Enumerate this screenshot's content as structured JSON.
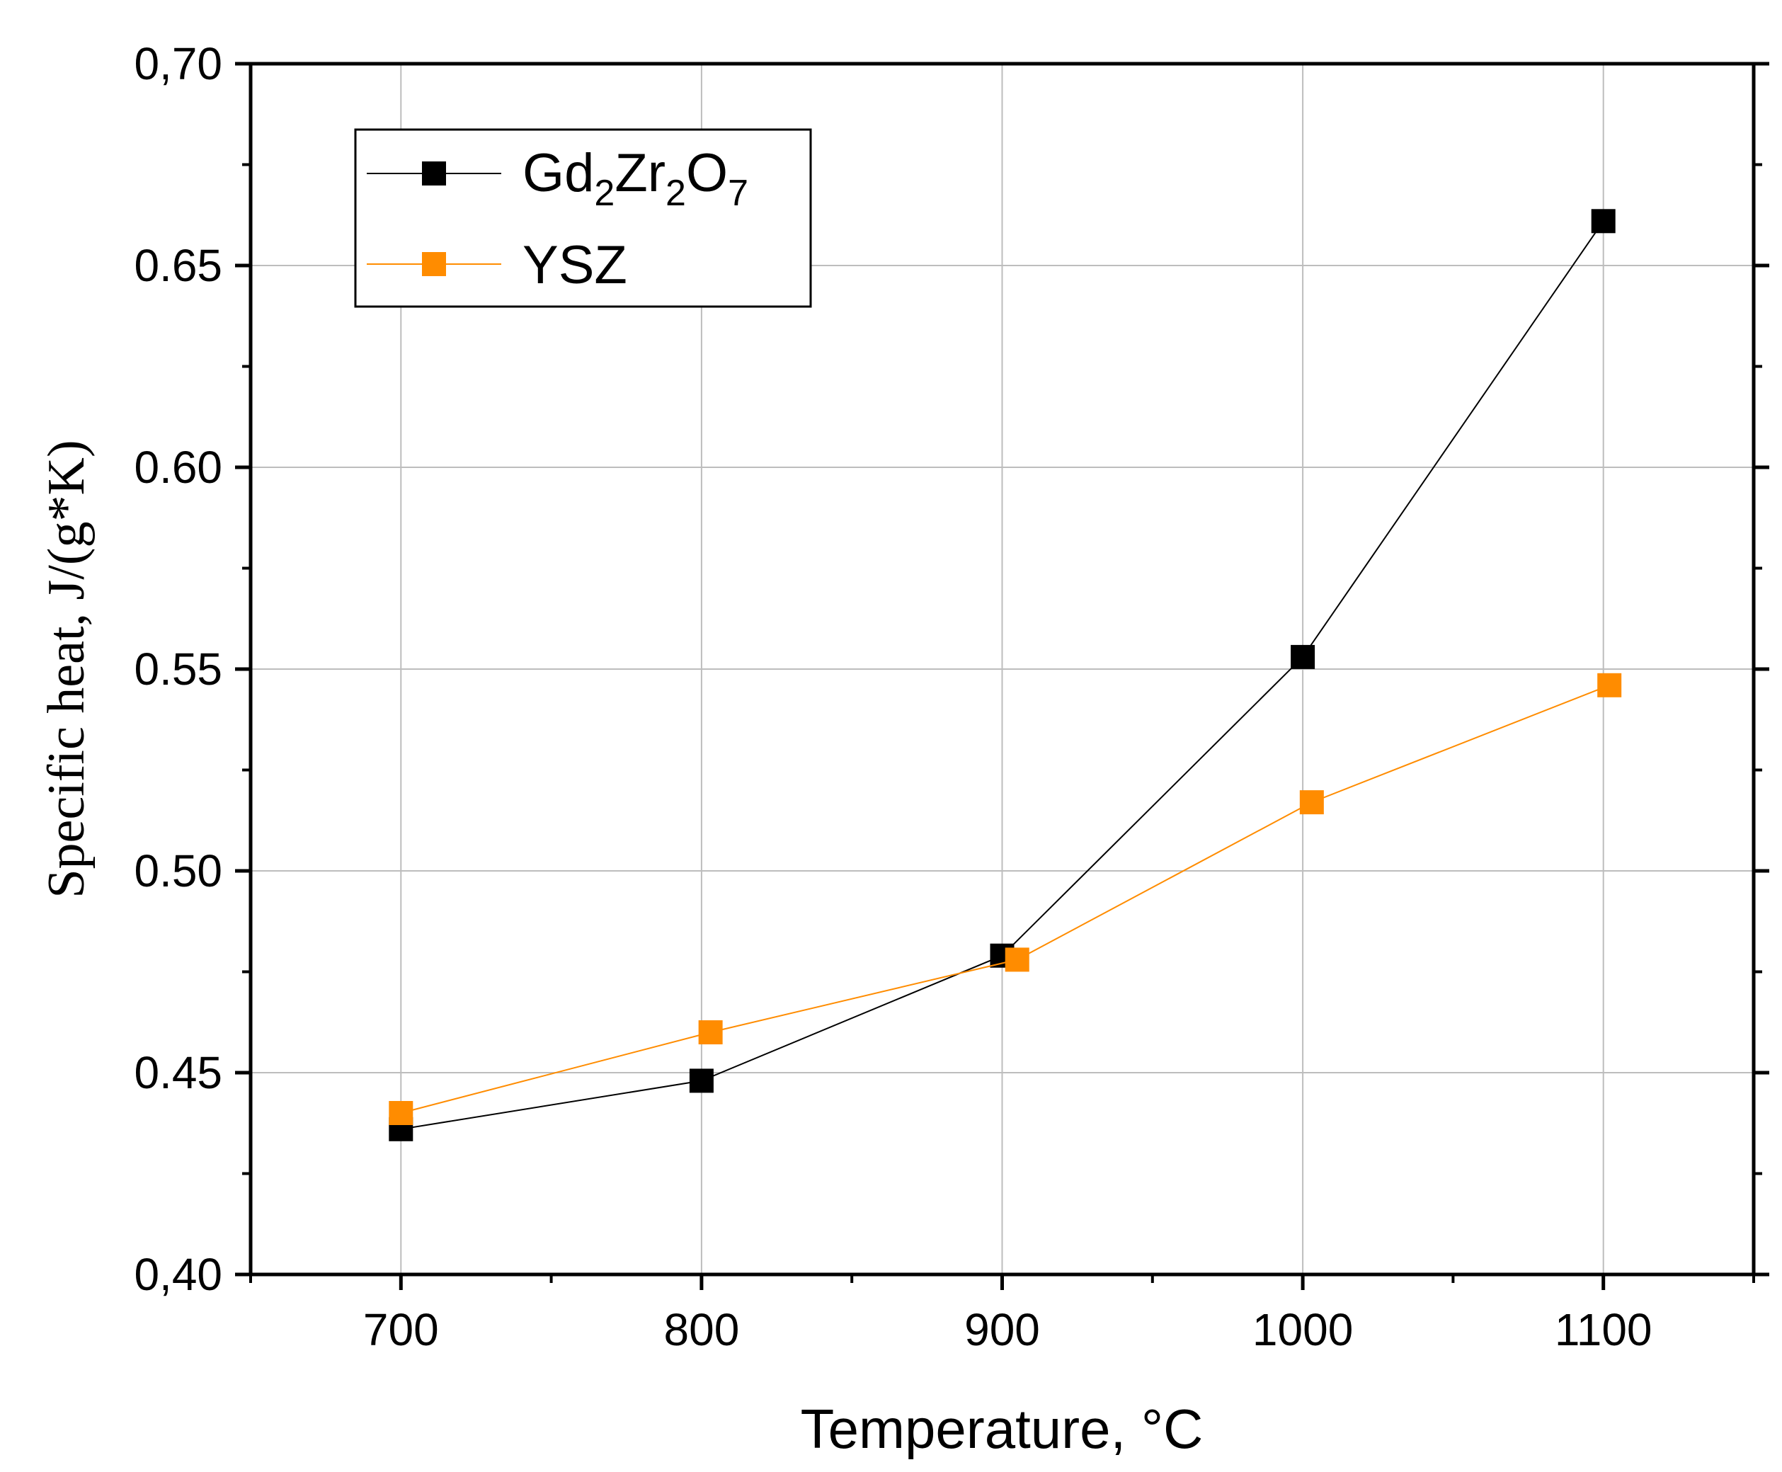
{
  "chart_data": {
    "type": "line",
    "title": "",
    "xlabel": "Temperature, °C",
    "ylabel": "Specific heat, J/(g*K)",
    "xlim": [
      650,
      1150
    ],
    "ylim": [
      0.4,
      0.7
    ],
    "xticks": [
      700,
      800,
      900,
      1000,
      1100
    ],
    "xtick_labels": [
      "700",
      "800",
      "900",
      "1000",
      "1100"
    ],
    "yticks": [
      0.4,
      0.45,
      0.5,
      0.55,
      0.6,
      0.65,
      0.7
    ],
    "ytick_labels": [
      "0,40",
      "0.45",
      "0.50",
      "0.55",
      "0.60",
      "0.65",
      "0,70"
    ],
    "grid": true,
    "legend_position": "top-left",
    "series": [
      {
        "name": "Gd2Zr2O7",
        "legend_parts": {
          "a": "Gd",
          "sub1": "2",
          "b": "Zr",
          "sub2": "2",
          "c": "O",
          "sub3": "7"
        },
        "color": "#000000",
        "marker": "square",
        "x": [
          700,
          800,
          900,
          1000,
          1100
        ],
        "y": [
          0.436,
          0.448,
          0.479,
          0.553,
          0.661
        ]
      },
      {
        "name": "YSZ",
        "color": "#ff8c00",
        "marker": "square",
        "x": [
          700,
          803,
          905,
          1003,
          1102
        ],
        "y": [
          0.44,
          0.46,
          0.478,
          0.517,
          0.546
        ]
      }
    ]
  }
}
